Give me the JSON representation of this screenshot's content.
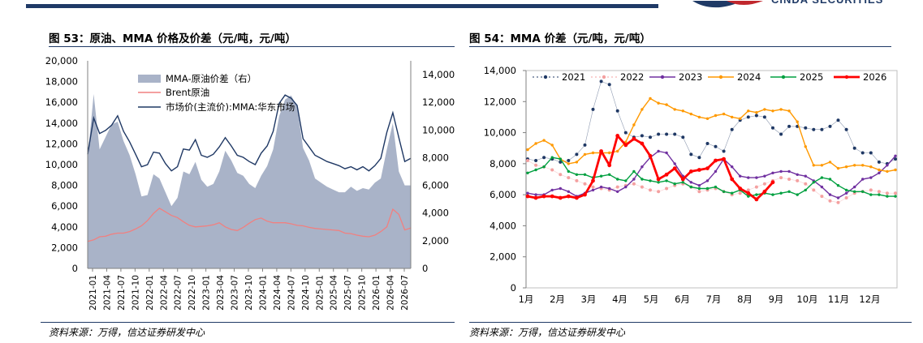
{
  "left_panel": {
    "title": "图 53：原油、MMA 价格及价差（元/吨，元/吨）",
    "source": "资料来源：万得，信达证券研发中心"
  },
  "right_panel": {
    "title": "图 54：MMA 价差（元/吨，元/吨）",
    "source": "资料来源：万得，信达证券研发中心"
  },
  "chart_data": [
    {
      "type": "area",
      "title": "图 53：原油、MMA 价格及价差（元/吨，元/吨）",
      "y_left_range": [
        0,
        20000
      ],
      "y_left_ticks": [
        "0",
        "2,000",
        "4,000",
        "6,000",
        "8,000",
        "10,000",
        "12,000",
        "14,000",
        "16,000",
        "18,000",
        "20,000"
      ],
      "y_right_range": [
        0,
        15000
      ],
      "y_right_ticks": [
        "0",
        "2,000",
        "4,000",
        "6,000",
        "8,000",
        "10,000",
        "12,000",
        "14,000"
      ],
      "x_tick_labels": [
        "2021-01",
        "2021-04",
        "2021-07",
        "2021-10",
        "2022-01",
        "2022-04",
        "2022-07",
        "2022-10",
        "2023-01",
        "2023-04",
        "2023-07",
        "2023-10",
        "2024-01",
        "2024-04",
        "2024-07",
        "2024-10",
        "2025-01",
        "2025-04",
        "2025-07",
        "2025-10",
        "2026-01",
        "2026-04",
        "2026-07"
      ],
      "legend": [
        "MMA-原油价差（右）",
        "Brent原油",
        "市场价(主流价):MMA:华东市场"
      ],
      "series": [
        {
          "name": "MMA-原油价差（右）",
          "axis": "right",
          "color": "#a9b3c8",
          "values": [
            8000,
            12600,
            8600,
            9500,
            10400,
            10600,
            9200,
            8200,
            6800,
            5200,
            5300,
            6800,
            6500,
            5500,
            4500,
            5100,
            7000,
            6800,
            7700,
            6400,
            5900,
            6100,
            7000,
            8500,
            7800,
            6900,
            6700,
            6100,
            5800,
            6700,
            7400,
            8600,
            11000,
            12200,
            12500,
            11700,
            8700,
            7800,
            6500,
            6200,
            5900,
            5700,
            5500,
            5500,
            5900,
            5600,
            5800,
            5700,
            6200,
            6500,
            8600,
            10500,
            7000,
            6000,
            6000
          ]
        },
        {
          "name": "Brent原油",
          "axis": "left",
          "color": "#f08080",
          "values": [
            2600,
            2750,
            3050,
            3100,
            3300,
            3400,
            3400,
            3550,
            3800,
            4100,
            4600,
            5300,
            5800,
            5450,
            5100,
            4900,
            4500,
            4150,
            4000,
            4050,
            4100,
            4200,
            4400,
            4000,
            3750,
            3650,
            3950,
            4350,
            4700,
            4850,
            4550,
            4400,
            4400,
            4400,
            4300,
            4150,
            4100,
            3950,
            3850,
            3800,
            3750,
            3700,
            3650,
            3400,
            3350,
            3200,
            3100,
            3050,
            3200,
            3550,
            4000,
            5700,
            5200,
            3700,
            3900
          ]
        },
        {
          "name": "市场价(主流价):MMA:华东市场",
          "axis": "left",
          "color": "#1f3864",
          "values": [
            11000,
            14500,
            13000,
            13300,
            13800,
            14700,
            13200,
            12200,
            11000,
            9800,
            10000,
            11200,
            11100,
            10100,
            9400,
            9800,
            11500,
            11400,
            12400,
            10900,
            10700,
            11000,
            11700,
            12600,
            11800,
            10900,
            10700,
            10300,
            10000,
            11100,
            11800,
            13200,
            15900,
            16700,
            16400,
            15700,
            12500,
            11700,
            10900,
            10600,
            10300,
            10100,
            9900,
            9600,
            9800,
            9500,
            9800,
            9400,
            9900,
            10600,
            13100,
            15000,
            12600,
            10300,
            10600
          ]
        }
      ]
    },
    {
      "type": "line",
      "title": "图 54：MMA 价差（元/吨，元/吨）",
      "ylim": [
        0,
        14000
      ],
      "y_ticks": [
        "0",
        "2,000",
        "4,000",
        "6,000",
        "8,000",
        "10,000",
        "12,000",
        "14,000"
      ],
      "x_tick_labels": [
        "1月",
        "2月",
        "3月",
        "4月",
        "5月",
        "6月",
        "7月",
        "8月",
        "9月",
        "10月",
        "11月",
        "12月"
      ],
      "series": [
        {
          "name": "2021",
          "color": "#1f3864",
          "style": "dotted",
          "values": [
            8300,
            8200,
            8400,
            8300,
            8100,
            8200,
            8600,
            9200,
            11500,
            13300,
            13100,
            11400,
            10000,
            9700,
            9800,
            9700,
            9900,
            9900,
            9900,
            9700,
            8600,
            8400,
            9300,
            9100,
            8800,
            10200,
            10800,
            11000,
            11100,
            11000,
            10300,
            9900,
            10400,
            10400,
            10300,
            10200,
            10200,
            10400,
            10800,
            10200,
            9000,
            8700,
            8700,
            8100,
            8000,
            8300
          ]
        },
        {
          "name": "2022",
          "color": "#f4a0a0",
          "style": "dotted",
          "values": [
            8200,
            7900,
            7800,
            7600,
            7300,
            7100,
            6900,
            6700,
            6500,
            6400,
            6300,
            6500,
            6600,
            6700,
            6500,
            6300,
            6200,
            6400,
            6600,
            6700,
            6500,
            6200,
            6300,
            6400,
            6200,
            6000,
            6100,
            6300,
            6500,
            6700,
            6900,
            7100,
            7000,
            6900,
            6700,
            6300,
            5900,
            5600,
            5500,
            5800,
            6100,
            6200,
            6300,
            6200,
            6100,
            6100
          ]
        },
        {
          "name": "2023",
          "color": "#7030a0",
          "style": "solid",
          "values": [
            6100,
            6000,
            6000,
            6300,
            6400,
            6200,
            5900,
            6100,
            6300,
            6500,
            6400,
            6200,
            6500,
            7000,
            7800,
            8400,
            8800,
            8700,
            8000,
            7200,
            6800,
            6600,
            6900,
            7500,
            8300,
            7800,
            7200,
            7100,
            7100,
            7200,
            7400,
            7500,
            7500,
            7300,
            7200,
            6900,
            6500,
            6000,
            5800,
            6100,
            6500,
            7000,
            7100,
            7400,
            7900,
            8500
          ]
        },
        {
          "name": "2024",
          "color": "#ff9900",
          "style": "solid",
          "values": [
            8900,
            9300,
            9500,
            9200,
            8300,
            8000,
            8100,
            8600,
            8700,
            8700,
            8700,
            8800,
            9400,
            10500,
            11500,
            12200,
            11900,
            11800,
            11500,
            11400,
            11200,
            11000,
            10900,
            11100,
            11200,
            11000,
            10900,
            11400,
            11300,
            11500,
            11400,
            11500,
            11400,
            10700,
            9100,
            7900,
            7900,
            8100,
            7700,
            7800,
            7900,
            7900,
            7800,
            7600,
            7500,
            7600
          ]
        },
        {
          "name": "2025",
          "color": "#00a040",
          "style": "solid",
          "values": [
            7400,
            7600,
            7800,
            8400,
            8300,
            7500,
            7300,
            7300,
            7100,
            7200,
            7300,
            7000,
            6900,
            7500,
            7000,
            6900,
            6800,
            6900,
            6700,
            6800,
            6500,
            6400,
            6400,
            6500,
            6200,
            6100,
            6300,
            5900,
            6000,
            6100,
            6000,
            6100,
            6200,
            6000,
            6300,
            6800,
            7100,
            7000,
            6600,
            6300,
            6200,
            6200,
            6000,
            6000,
            5900,
            5900
          ]
        },
        {
          "name": "2026",
          "color": "#ff0000",
          "style": "solid-bold",
          "values": [
            5900,
            5800,
            5900,
            5900,
            5800,
            5900,
            5800,
            6000,
            6900,
            8800,
            7900,
            9800,
            9200,
            9600,
            9300,
            8500,
            7000,
            7300,
            7700,
            7000,
            7500,
            7600,
            7700,
            8200,
            8300,
            7000,
            6400,
            6100,
            5700,
            6200,
            6800
          ]
        }
      ]
    }
  ]
}
